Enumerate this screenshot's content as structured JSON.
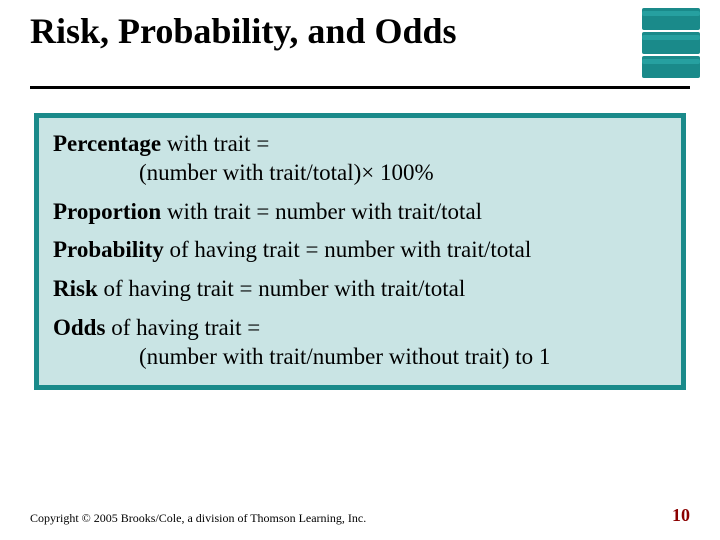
{
  "slide": {
    "title": "Risk, Probability, and Odds",
    "background_color": "#ffffff",
    "title_color": "#000000",
    "title_fontsize": 36,
    "rule_color": "#000000",
    "ribbon": {
      "count": 3,
      "color": "#1a8a8a",
      "highlight": "#26a0a0",
      "width": 58,
      "height": 22
    },
    "content_box": {
      "border_color": "#1a8a8a",
      "border_width": 5,
      "fill_color": "#c9e4e4",
      "text_color": "#000000",
      "fontsize": 23
    },
    "definitions": [
      {
        "term": "Percentage",
        "rest_line1": " with trait =",
        "line2": "(number with trait/total)× 100%"
      },
      {
        "term": "Proportion",
        "rest_line1": " with trait = number with trait/total",
        "line2": ""
      },
      {
        "term": "Probability",
        "rest_line1": " of having trait = number with trait/total",
        "line2": ""
      },
      {
        "term": "Risk",
        "rest_line1": " of having trait = number with trait/total",
        "line2": ""
      },
      {
        "term": "Odds",
        "rest_line1": " of having trait =",
        "line2": "(number with trait/number without trait) to 1"
      }
    ],
    "footer": {
      "copyright": "Copyright © 2005 Brooks/Cole, a division of Thomson Learning, Inc.",
      "page_number": "10",
      "copyright_fontsize": 12,
      "page_color": "#8b0000",
      "page_fontsize": 18
    }
  }
}
